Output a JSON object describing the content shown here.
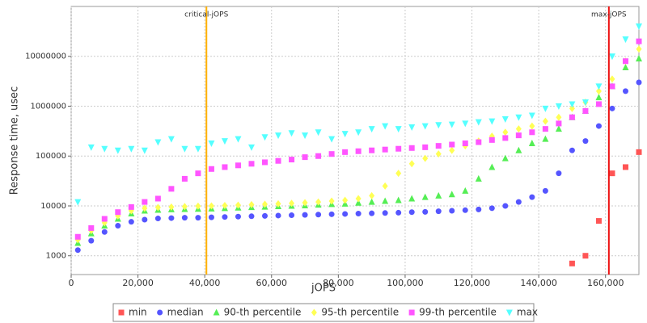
{
  "chart_data": {
    "type": "scatter",
    "log_y": true,
    "grid": true,
    "xlabel": "jOPS",
    "ylabel": "Response time, usec",
    "xlim": [
      0,
      170000
    ],
    "xticks": [
      0,
      {
        "value": 20000,
        "label": "20,000"
      },
      {
        "value": 40000,
        "label": "40,000"
      },
      {
        "value": 60000,
        "label": "60,000"
      },
      {
        "value": 80000,
        "label": "80,000"
      },
      {
        "value": 100000,
        "label": "100,000"
      },
      {
        "value": 120000,
        "label": "120,000"
      },
      {
        "value": 140000,
        "label": "140,000"
      },
      {
        "value": 160000,
        "label": "160,000"
      }
    ],
    "ylim": [
      420,
      100000000
    ],
    "yticks": [
      1000,
      10000,
      100000,
      1000000,
      10000000
    ],
    "markers": [
      {
        "label": "critical-jOPS",
        "value": 40500,
        "color": "#ffb000"
      },
      {
        "label": "max-jOPS",
        "value": 161000,
        "color": "#ee1111"
      }
    ],
    "x": [
      2000,
      6000,
      10000,
      14000,
      18000,
      22000,
      26000,
      30000,
      34000,
      38000,
      42000,
      46000,
      50000,
      54000,
      58000,
      62000,
      66000,
      70000,
      74000,
      78000,
      82000,
      86000,
      90000,
      94000,
      98000,
      102000,
      106000,
      110000,
      114000,
      118000,
      122000,
      126000,
      130000,
      134000,
      138000,
      142000,
      146000,
      150000,
      154000,
      158000,
      162000,
      166000,
      170000
    ],
    "series": [
      {
        "name": "min",
        "color": "#ff5555",
        "marker": "square",
        "values": [
          null,
          null,
          null,
          null,
          null,
          null,
          null,
          null,
          null,
          null,
          null,
          null,
          null,
          null,
          null,
          null,
          null,
          null,
          null,
          null,
          null,
          null,
          null,
          null,
          null,
          null,
          null,
          null,
          null,
          null,
          null,
          null,
          null,
          null,
          null,
          null,
          null,
          700,
          1000,
          5000,
          45000,
          60000,
          120000
        ]
      },
      {
        "name": "median",
        "color": "#5555ff",
        "marker": "circle",
        "values": [
          1300,
          2000,
          3000,
          4000,
          4800,
          5300,
          5600,
          5700,
          5800,
          5800,
          5900,
          6000,
          6100,
          6200,
          6300,
          6400,
          6500,
          6600,
          6700,
          6800,
          6900,
          7000,
          7100,
          7200,
          7300,
          7500,
          7600,
          7800,
          8000,
          8200,
          8500,
          9000,
          10000,
          12000,
          15000,
          20000,
          45000,
          130000,
          200000,
          400000,
          900000,
          2000000,
          3000000
        ]
      },
      {
        "name": "90-th percentile",
        "color": "#55ee55",
        "marker": "triangle-up",
        "values": [
          1800,
          2800,
          4000,
          5500,
          7000,
          8000,
          8300,
          8500,
          8600,
          8700,
          8800,
          9000,
          9200,
          9400,
          9600,
          9800,
          10000,
          10200,
          10500,
          10800,
          11000,
          11500,
          12000,
          12500,
          13000,
          14000,
          15000,
          16000,
          17000,
          20000,
          35000,
          60000,
          90000,
          130000,
          180000,
          220000,
          350000,
          600000,
          800000,
          1500000,
          2500000,
          6000000,
          9000000
        ]
      },
      {
        "name": "95-th percentile",
        "color": "#ffff55",
        "marker": "diamond",
        "values": [
          2100,
          3200,
          4600,
          6300,
          8000,
          9000,
          9300,
          9500,
          9700,
          9900,
          10000,
          10200,
          10400,
          10600,
          10800,
          11000,
          11300,
          11600,
          12000,
          12500,
          13000,
          14000,
          16000,
          25000,
          45000,
          70000,
          90000,
          110000,
          130000,
          160000,
          200000,
          250000,
          300000,
          350000,
          400000,
          500000,
          600000,
          900000,
          1200000,
          2000000,
          3500000,
          8000000,
          14000000
        ]
      },
      {
        "name": "99-th percentile",
        "color": "#ff55ff",
        "marker": "square",
        "values": [
          2400,
          3600,
          5500,
          7500,
          9500,
          12000,
          14000,
          22000,
          35000,
          45000,
          55000,
          60000,
          65000,
          70000,
          75000,
          80000,
          85000,
          95000,
          100000,
          110000,
          120000,
          125000,
          130000,
          135000,
          140000,
          145000,
          150000,
          160000,
          170000,
          180000,
          190000,
          210000,
          230000,
          260000,
          300000,
          350000,
          450000,
          600000,
          800000,
          1100000,
          2500000,
          8000000,
          20000000
        ]
      },
      {
        "name": "max",
        "color": "#55ffff",
        "marker": "triangle-down",
        "values": [
          12000,
          150000,
          140000,
          130000,
          140000,
          130000,
          190000,
          220000,
          140000,
          140000,
          180000,
          200000,
          220000,
          150000,
          240000,
          260000,
          290000,
          260000,
          300000,
          220000,
          280000,
          300000,
          350000,
          400000,
          350000,
          380000,
          400000,
          420000,
          430000,
          450000,
          480000,
          500000,
          550000,
          600000,
          650000,
          900000,
          1000000,
          1100000,
          1200000,
          2500000,
          10000000,
          22000000,
          40000000
        ]
      }
    ]
  }
}
